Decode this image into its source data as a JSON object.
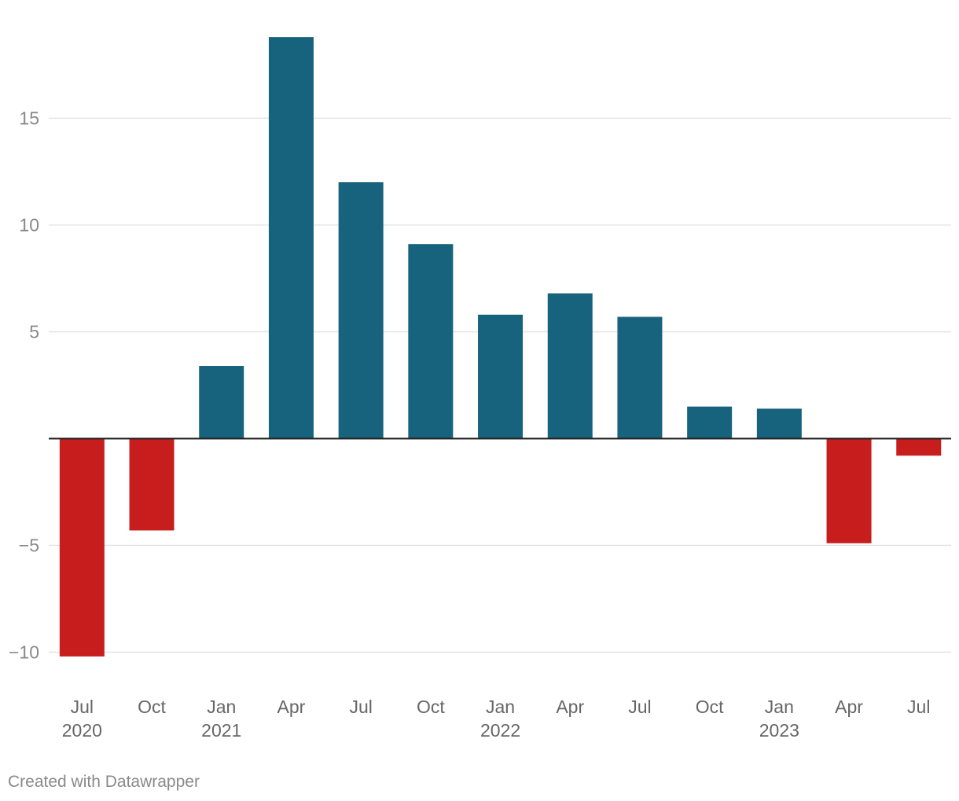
{
  "chart_data": {
    "type": "bar",
    "title": "",
    "xlabel": "",
    "ylabel": "",
    "ylim": [
      -12,
      19.5
    ],
    "yticks": [
      -10,
      -5,
      5,
      10,
      15
    ],
    "ytick_labels": [
      "−10",
      "−5",
      "5",
      "10",
      "15"
    ],
    "grid": true,
    "categories": [
      {
        "month": "Jul",
        "year": "2020"
      },
      {
        "month": "Oct",
        "year": ""
      },
      {
        "month": "Jan",
        "year": "2021"
      },
      {
        "month": "Apr",
        "year": ""
      },
      {
        "month": "Jul",
        "year": ""
      },
      {
        "month": "Oct",
        "year": ""
      },
      {
        "month": "Jan",
        "year": "2022"
      },
      {
        "month": "Apr",
        "year": ""
      },
      {
        "month": "Jul",
        "year": ""
      },
      {
        "month": "Oct",
        "year": ""
      },
      {
        "month": "Jan",
        "year": "2023"
      },
      {
        "month": "Apr",
        "year": ""
      },
      {
        "month": "Jul",
        "year": ""
      }
    ],
    "values": [
      -10.2,
      -4.3,
      3.4,
      18.8,
      12.0,
      9.1,
      5.8,
      6.8,
      5.7,
      1.5,
      1.4,
      -4.9,
      -0.8
    ],
    "colors": {
      "positive": "#17627c",
      "negative": "#c71e1d",
      "zero_line": "#222222",
      "grid": "#e3e3e3"
    }
  },
  "footer": {
    "credit": "Created with Datawrapper"
  }
}
